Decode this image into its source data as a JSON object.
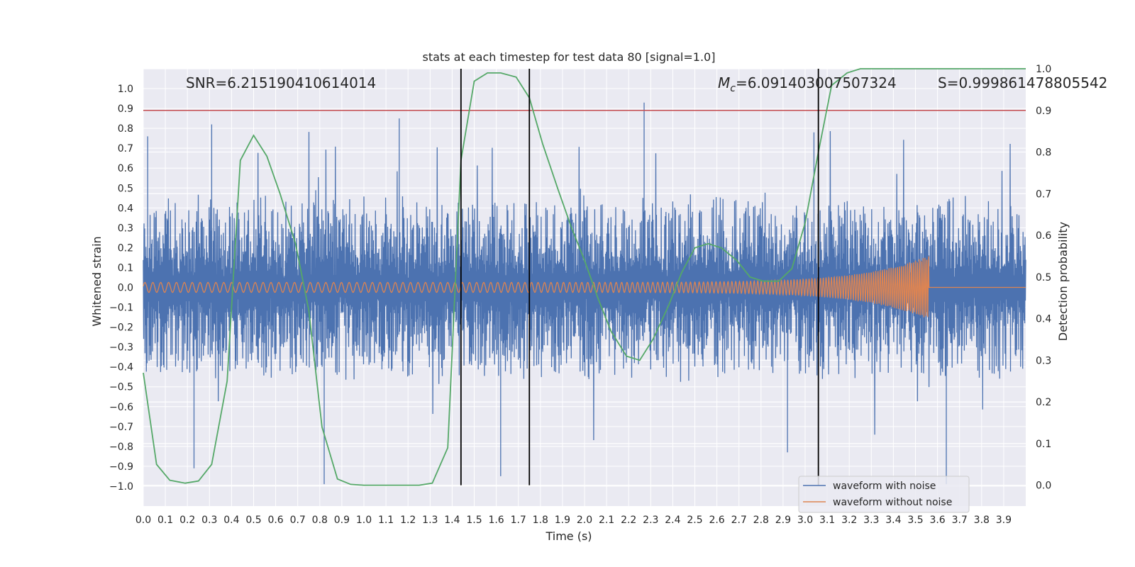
{
  "chart_data": {
    "type": "line",
    "title": "stats at each timestep for test data 80 [signal=1.0]",
    "xlabel": "Time (s)",
    "ylabel": "Whitened strain",
    "y2label": "Detection probability",
    "xlim": [
      0.0,
      4.0
    ],
    "ylim": [
      -1.1,
      1.1
    ],
    "y2lim": [
      -0.05,
      1.0
    ],
    "x_ticks": [
      "0.0",
      "0.1",
      "0.2",
      "0.3",
      "0.4",
      "0.5",
      "0.6",
      "0.7",
      "0.8",
      "0.9",
      "1.0",
      "1.1",
      "1.2",
      "1.3",
      "1.4",
      "1.5",
      "1.6",
      "1.7",
      "1.8",
      "1.9",
      "2.0",
      "2.1",
      "2.2",
      "2.3",
      "2.4",
      "2.5",
      "2.6",
      "2.7",
      "2.8",
      "2.9",
      "3.0",
      "3.1",
      "3.2",
      "3.3",
      "3.4",
      "3.5",
      "3.6",
      "3.7",
      "3.8",
      "3.9"
    ],
    "y_ticks": [
      "−1.0",
      "−0.9",
      "−0.8",
      "−0.7",
      "−0.6",
      "−0.5",
      "−0.4",
      "−0.3",
      "−0.2",
      "−0.1",
      "0.0",
      "0.1",
      "0.2",
      "0.3",
      "0.4",
      "0.5",
      "0.6",
      "0.7",
      "0.8",
      "0.9",
      "1.0"
    ],
    "y2_ticks": [
      "0.0",
      "0.1",
      "0.2",
      "0.3",
      "0.4",
      "0.5",
      "0.6",
      "0.7",
      "0.8",
      "0.9",
      "1.0"
    ],
    "grid": true,
    "annotations": {
      "snr": "SNR=6.215190410614014",
      "mc_symbol": "M",
      "mc_sub": "c",
      "mc_value": "=6.091403007507324",
      "s": "S=0.999861478805542"
    },
    "threshold": {
      "value": 0.9,
      "axis": "y2",
      "color": "#c44e52"
    },
    "event_markers_x": [
      1.44,
      1.75,
      3.06
    ],
    "series": [
      {
        "name": "waveform with noise",
        "color": "#4c72b0",
        "axis": "y",
        "envelope": {
          "upper": [
            0.4,
            0.9
          ],
          "lower": [
            -0.4,
            -1.0
          ],
          "typical_abs": 0.25
        },
        "peaks": [
          {
            "x": 0.02,
            "y": 0.76
          },
          {
            "x": 0.23,
            "y": -0.91
          },
          {
            "x": 0.31,
            "y": 0.82
          },
          {
            "x": 0.82,
            "y": -0.99
          },
          {
            "x": 1.16,
            "y": 0.85
          },
          {
            "x": 1.62,
            "y": -0.95
          },
          {
            "x": 2.27,
            "y": 0.93
          },
          {
            "x": 2.92,
            "y": -0.83
          },
          {
            "x": 3.04,
            "y": 0.78
          },
          {
            "x": 3.64,
            "y": -0.99
          }
        ]
      },
      {
        "name": "waveform without noise",
        "color": "#dd8452",
        "axis": "y",
        "chirp": {
          "start_amplitude": 0.025,
          "peak_amplitude": 0.16,
          "merger_time": 3.56,
          "start_frequency_hz": 28,
          "end_frequency_hz": 120
        }
      },
      {
        "name": "detection probability",
        "color": "#55a868",
        "axis": "y2",
        "x": [
          0.0,
          0.06,
          0.12,
          0.19,
          0.25,
          0.31,
          0.38,
          0.44,
          0.5,
          0.56,
          0.62,
          0.69,
          0.75,
          0.81,
          0.88,
          0.94,
          1.0,
          1.06,
          1.12,
          1.19,
          1.25,
          1.31,
          1.38,
          1.44,
          1.5,
          1.56,
          1.62,
          1.69,
          1.75,
          1.81,
          1.88,
          1.94,
          2.0,
          2.06,
          2.12,
          2.19,
          2.25,
          2.31,
          2.38,
          2.44,
          2.5,
          2.56,
          2.62,
          2.69,
          2.75,
          2.81,
          2.88,
          2.94,
          3.0,
          3.06,
          3.12,
          3.19,
          3.25,
          3.31,
          3.38,
          3.44,
          3.5,
          3.56,
          3.62,
          3.69,
          3.75,
          3.81,
          3.88,
          3.94,
          4.0
        ],
        "y": [
          0.27,
          0.05,
          0.012,
          0.005,
          0.01,
          0.05,
          0.25,
          0.78,
          0.84,
          0.79,
          0.7,
          0.58,
          0.42,
          0.14,
          0.015,
          0.002,
          0.0,
          0.0,
          0.0,
          0.0,
          0.0,
          0.005,
          0.09,
          0.78,
          0.97,
          0.99,
          0.99,
          0.98,
          0.93,
          0.82,
          0.71,
          0.62,
          0.54,
          0.45,
          0.37,
          0.31,
          0.3,
          0.35,
          0.43,
          0.51,
          0.57,
          0.58,
          0.57,
          0.54,
          0.5,
          0.49,
          0.49,
          0.52,
          0.63,
          0.8,
          0.96,
          0.99,
          1.0,
          1.0,
          1.0,
          1.0,
          1.0,
          1.0,
          1.0,
          1.0,
          1.0,
          1.0,
          1.0,
          1.0,
          1.0
        ]
      }
    ],
    "legend": {
      "position": "lower-right",
      "entries": [
        "waveform with noise",
        "waveform without noise"
      ]
    }
  }
}
